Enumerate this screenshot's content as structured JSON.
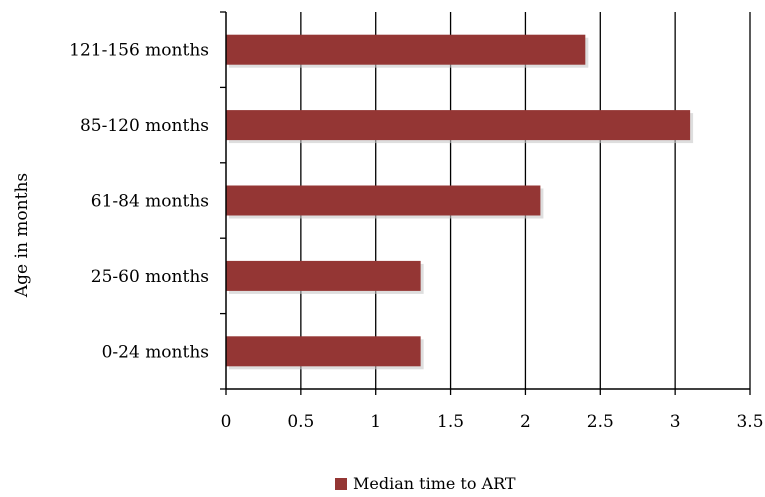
{
  "chart_data": {
    "type": "bar",
    "orientation": "horizontal",
    "categories": [
      "0-24 months",
      "25-60 months",
      "61-84 months",
      "85-120 months",
      "121-156 months"
    ],
    "series": [
      {
        "name": "Median time to ART",
        "values": [
          1.3,
          1.3,
          2.1,
          3.1,
          2.4
        ]
      }
    ],
    "xlabel": "",
    "ylabel": "Age in months",
    "xlim": [
      0,
      3.5
    ],
    "xticks": [
      "0",
      "0.5",
      "1",
      "1.5",
      "2",
      "2.5",
      "3",
      "3.5"
    ],
    "grid": "vertical",
    "legend_position": "bottom",
    "bar_color": "#943634"
  }
}
